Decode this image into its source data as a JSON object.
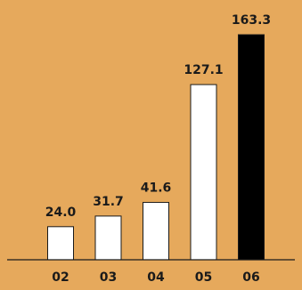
{
  "chart_data": {
    "type": "bar",
    "categories": [
      "02",
      "03",
      "04",
      "05",
      "06"
    ],
    "values": [
      24.0,
      31.7,
      41.6,
      127.1,
      163.3
    ],
    "value_labels": [
      "24.0",
      "31.7",
      "41.6",
      "127.1",
      "163.3"
    ],
    "title": "",
    "xlabel": "",
    "ylabel": "",
    "ylim": [
      0,
      163.3
    ],
    "grid": false,
    "legend": "none",
    "colors": {
      "background": "#e6a95c",
      "bar_fill": "#ffffff",
      "bar_stroke": "#1a1a1a",
      "highlight_fill": "#000000",
      "axis": "#1a1a1a"
    },
    "highlight_index": 4
  }
}
